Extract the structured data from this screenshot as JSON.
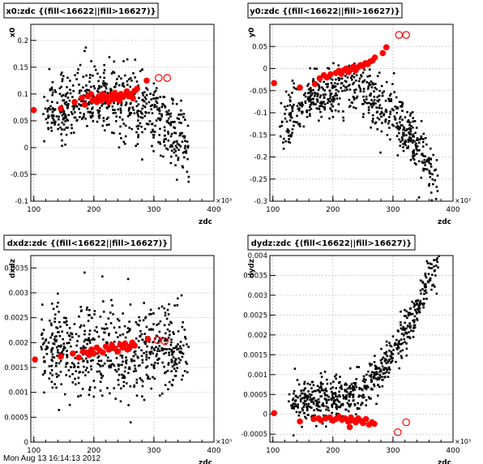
{
  "footer_text": "Mon Aug 13 16:14:13 2012",
  "colors": {
    "points": "#000000",
    "highlight": "#ff0000",
    "grid": "#c0c0c0",
    "frame": "#000000"
  },
  "chart_data": [
    {
      "type": "scatter",
      "title": "x0:zdc {(fill<16622||fill>16627)}",
      "xlabel": "zdc",
      "ylabel": "x0",
      "x_multiplier": "×10³",
      "xlim": [
        95,
        400
      ],
      "ylim": [
        -0.1,
        0.23
      ],
      "xticks": [
        100,
        200,
        300,
        400
      ],
      "yticks": [
        -0.1,
        -0.05,
        0,
        0.05,
        0.1,
        0.15,
        0.2
      ],
      "ytick_labels": [
        "-0.1",
        "-0.05",
        "0",
        "0.05",
        "0.1",
        "0.15",
        "0.2"
      ],
      "grid": true,
      "cloud": {
        "x_range": [
          115,
          360
        ],
        "peak_x": 215,
        "peak_y": 0.095,
        "curvature": 4.5e-06,
        "spread": 0.032,
        "count": 620
      },
      "series": [
        {
          "style": "filled-circle",
          "values": [
            [
              100,
              0.07
            ],
            [
              145,
              0.073
            ],
            [
              168,
              0.085
            ],
            [
              180,
              0.093
            ],
            [
              185,
              0.08
            ],
            [
              190,
              0.096
            ],
            [
              195,
              0.1
            ],
            [
              198,
              0.088
            ],
            [
              202,
              0.09
            ],
            [
              205,
              0.085
            ],
            [
              208,
              0.095
            ],
            [
              212,
              0.088
            ],
            [
              215,
              0.1
            ],
            [
              218,
              0.092
            ],
            [
              222,
              0.094
            ],
            [
              225,
              0.085
            ],
            [
              228,
              0.098
            ],
            [
              232,
              0.09
            ],
            [
              235,
              0.102
            ],
            [
              238,
              0.095
            ],
            [
              242,
              0.088
            ],
            [
              245,
              0.1
            ],
            [
              248,
              0.094
            ],
            [
              252,
              0.098
            ],
            [
              255,
              0.105
            ],
            [
              258,
              0.096
            ],
            [
              262,
              0.1
            ],
            [
              265,
              0.092
            ],
            [
              268,
              0.106
            ],
            [
              272,
              0.11
            ],
            [
              288,
              0.125
            ]
          ]
        },
        {
          "style": "open-circle",
          "values": [
            [
              308,
              0.13
            ],
            [
              322,
              0.13
            ]
          ]
        }
      ]
    },
    {
      "type": "scatter",
      "title": "y0:zdc {(fill<16622||fill>16627)}",
      "xlabel": "zdc",
      "ylabel": "y0",
      "x_multiplier": "×10³",
      "xlim": [
        95,
        400
      ],
      "ylim": [
        -0.3,
        0.1
      ],
      "xticks": [
        100,
        200,
        300,
        400
      ],
      "yticks": [
        -0.3,
        -0.25,
        -0.2,
        -0.15,
        -0.1,
        -0.05,
        0,
        0.05
      ],
      "ytick_labels": [
        "-0.3",
        "-0.25",
        "-0.2",
        "-0.15",
        "-0.1",
        "-0.05",
        "0",
        "0.05"
      ],
      "grid": true,
      "cloud": {
        "x_range": [
          110,
          375
        ],
        "peak_x": 215,
        "peak_y": -0.045,
        "curvature": 8.5e-06,
        "spread": 0.03,
        "count": 620
      },
      "series": [
        {
          "style": "filled-circle",
          "values": [
            [
              102,
              -0.033
            ],
            [
              145,
              -0.043
            ],
            [
              170,
              -0.035
            ],
            [
              178,
              -0.022
            ],
            [
              185,
              -0.015
            ],
            [
              190,
              -0.02
            ],
            [
              196,
              -0.013
            ],
            [
              205,
              -0.01
            ],
            [
              210,
              -0.005
            ],
            [
              214,
              -0.012
            ],
            [
              218,
              -0.004
            ],
            [
              222,
              0.0
            ],
            [
              226,
              -0.008
            ],
            [
              230,
              -0.002
            ],
            [
              234,
              0.004
            ],
            [
              238,
              -0.004
            ],
            [
              242,
              0.003
            ],
            [
              246,
              0.008
            ],
            [
              250,
              0.006
            ],
            [
              254,
              0.012
            ],
            [
              258,
              0.01
            ],
            [
              262,
              0.016
            ],
            [
              266,
              0.018
            ],
            [
              270,
              0.025
            ],
            [
              283,
              0.035
            ],
            [
              289,
              0.048
            ]
          ]
        },
        {
          "style": "open-circle",
          "values": [
            [
              310,
              0.076
            ],
            [
              322,
              0.076
            ]
          ]
        }
      ]
    },
    {
      "type": "scatter",
      "title": "dxdz:zdc {(fill<16622||fill>16627)}",
      "xlabel": "zdc",
      "ylabel": "dxdz",
      "x_multiplier": "×10³",
      "xlim": [
        95,
        400
      ],
      "ylim": [
        0.0,
        0.00375
      ],
      "xticks": [
        100,
        200,
        300,
        400
      ],
      "yticks": [
        0,
        0.0005,
        0.001,
        0.0015,
        0.002,
        0.0025,
        0.003,
        0.0035
      ],
      "ytick_labels": [
        "0",
        "0.0005",
        "0.001",
        "0.0015",
        "0.002",
        "0.0025",
        "0.003",
        "0.0035"
      ],
      "grid": true,
      "cloud": {
        "x_range": [
          110,
          360
        ],
        "peak_x": 220,
        "peak_y": 0.00185,
        "curvature": 0.0,
        "spread": 0.00045,
        "count": 620
      },
      "series": [
        {
          "style": "filled-circle",
          "values": [
            [
              102,
              0.00166
            ],
            [
              145,
              0.00172
            ],
            [
              165,
              0.00178
            ],
            [
              175,
              0.0017
            ],
            [
              182,
              0.00182
            ],
            [
              188,
              0.0018
            ],
            [
              192,
              0.00175
            ],
            [
              196,
              0.00186
            ],
            [
              200,
              0.00178
            ],
            [
              205,
              0.0019
            ],
            [
              210,
              0.00184
            ],
            [
              215,
              0.0018
            ],
            [
              220,
              0.00192
            ],
            [
              225,
              0.00186
            ],
            [
              230,
              0.00195
            ],
            [
              235,
              0.00188
            ],
            [
              240,
              0.00182
            ],
            [
              244,
              0.00196
            ],
            [
              248,
              0.0019
            ],
            [
              252,
              0.00198
            ],
            [
              256,
              0.00186
            ],
            [
              260,
              0.00192
            ],
            [
              264,
              0.002
            ],
            [
              268,
              0.00194
            ],
            [
              290,
              0.00207
            ]
          ]
        },
        {
          "style": "open-circle",
          "values": [
            [
              306,
              0.00205
            ],
            [
              318,
              0.00203
            ]
          ]
        }
      ]
    },
    {
      "type": "scatter",
      "title": "dydz:zdc {(fill<16622||fill>16627)}",
      "xlabel": "zdc",
      "ylabel": "dydz",
      "x_multiplier": "×10³",
      "xlim": [
        95,
        400
      ],
      "ylim": [
        -0.0007,
        0.004
      ],
      "xticks": [
        100,
        200,
        300,
        400
      ],
      "yticks": [
        -0.0005,
        0,
        0.0005,
        0.001,
        0.0015,
        0.002,
        0.0025,
        0.003,
        0.0035,
        0.004
      ],
      "ytick_labels": [
        "-0.0005",
        "0",
        "0.0005",
        "0.001",
        "0.0015",
        "0.002",
        "0.0025",
        "0.003",
        "0.0035",
        "0.004"
      ],
      "grid": true,
      "cloud": {
        "x_range": [
          125,
          380
        ],
        "peak_x": 200,
        "peak_y": 0.00035,
        "curvature": 1.2e-07,
        "spread": 0.00028,
        "count": 620
      },
      "series": [
        {
          "style": "filled-circle",
          "values": [
            [
              102,
              3e-05
            ],
            [
              145,
              -0.00018
            ],
            [
              168,
              -0.00012
            ],
            [
              176,
              -0.0001
            ],
            [
              180,
              -0.00015
            ],
            [
              188,
              -0.0001
            ],
            [
              195,
              -8e-05
            ],
            [
              200,
              -0.00016
            ],
            [
              205,
              -0.00012
            ],
            [
              210,
              -6e-05
            ],
            [
              215,
              -0.00014
            ],
            [
              220,
              -0.0001
            ],
            [
              225,
              -0.00018
            ],
            [
              230,
              -8e-05
            ],
            [
              234,
              -0.00015
            ],
            [
              238,
              -0.0002
            ],
            [
              242,
              -0.0001
            ],
            [
              246,
              -0.00016
            ],
            [
              250,
              -0.00022
            ],
            [
              255,
              -0.00012
            ],
            [
              260,
              -0.00026
            ],
            [
              265,
              -0.0002
            ],
            [
              269,
              -0.00024
            ],
            [
              228,
              -0.00032
            ]
          ]
        },
        {
          "style": "open-circle",
          "values": [
            [
              308,
              -0.00045
            ],
            [
              322,
              -0.0002
            ]
          ]
        }
      ]
    }
  ]
}
